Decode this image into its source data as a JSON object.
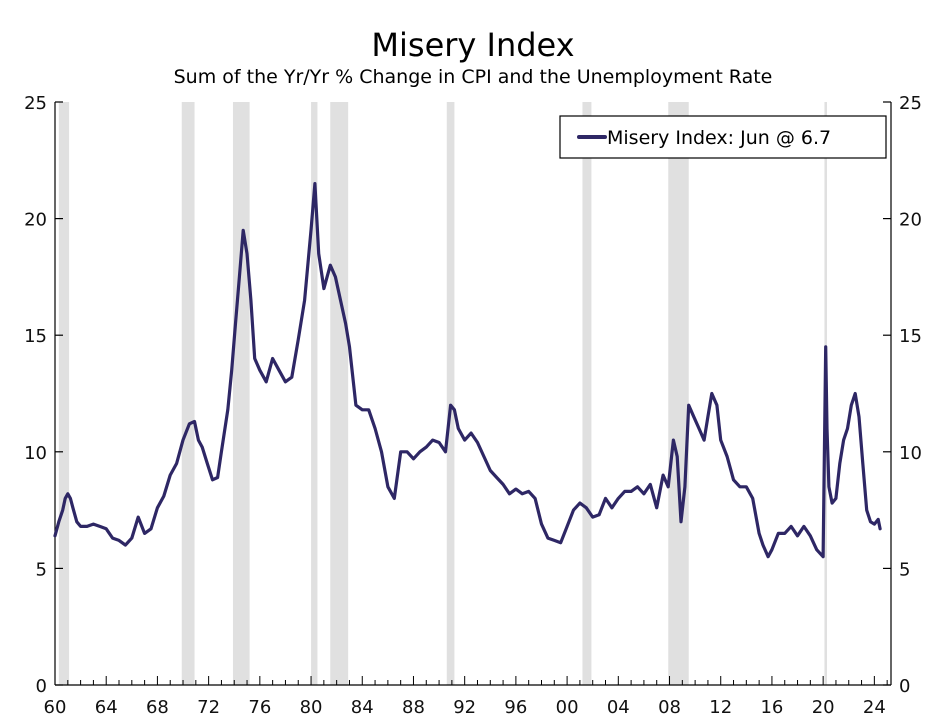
{
  "chart_data": {
    "type": "line",
    "title": "Misery Index",
    "subtitle": "Sum of the Yr/Yr % Change in CPI and the Unemployment Rate",
    "xlabel": "",
    "ylabel": "",
    "xlim": [
      1960,
      2025.3
    ],
    "ylim": [
      0,
      25
    ],
    "y_ticks": [
      0,
      5,
      10,
      15,
      20,
      25
    ],
    "y_tick_labels": [
      "0",
      "5",
      "10",
      "15",
      "20",
      "25"
    ],
    "x_ticks": [
      1960,
      1964,
      1968,
      1972,
      1976,
      1980,
      1984,
      1988,
      1992,
      1996,
      2000,
      2004,
      2008,
      2012,
      2016,
      2020,
      2024
    ],
    "x_tick_labels": [
      "60",
      "64",
      "68",
      "72",
      "76",
      "80",
      "84",
      "88",
      "92",
      "96",
      "00",
      "04",
      "08",
      "12",
      "16",
      "20",
      "24"
    ],
    "grid": false,
    "legend": {
      "position": "top-right",
      "label": "Misery Index: Jun @ 6.7"
    },
    "recessions": [
      [
        1960.3,
        1961.1
      ],
      [
        1969.9,
        1970.9
      ],
      [
        1973.9,
        1975.2
      ],
      [
        1980.0,
        1980.5
      ],
      [
        1981.5,
        1982.9
      ],
      [
        1990.6,
        1991.2
      ],
      [
        2001.2,
        2001.9
      ],
      [
        2007.9,
        2009.5
      ],
      [
        2020.1,
        2020.3
      ]
    ],
    "colors": {
      "line": "#2e2765",
      "recession": "#e0e0e0",
      "axis": "#000000"
    },
    "series": [
      {
        "name": "Misery Index",
        "x": [
          1960.0,
          1960.3,
          1960.6,
          1960.8,
          1961.0,
          1961.2,
          1961.4,
          1961.7,
          1962.0,
          1962.5,
          1963.0,
          1963.5,
          1964.0,
          1964.5,
          1965.0,
          1965.5,
          1966.0,
          1966.5,
          1967.0,
          1967.5,
          1968.0,
          1968.5,
          1969.0,
          1969.5,
          1970.0,
          1970.5,
          1970.9,
          1971.2,
          1971.5,
          1971.9,
          1972.3,
          1972.7,
          1973.0,
          1973.5,
          1973.8,
          1974.1,
          1974.4,
          1974.7,
          1975.0,
          1975.3,
          1975.6,
          1976.0,
          1976.5,
          1977.0,
          1977.5,
          1978.0,
          1978.5,
          1979.0,
          1979.5,
          1980.0,
          1980.3,
          1980.6,
          1981.0,
          1981.5,
          1981.9,
          1982.3,
          1982.7,
          1983.0,
          1983.5,
          1984.0,
          1984.5,
          1985.0,
          1985.5,
          1986.0,
          1986.5,
          1987.0,
          1987.5,
          1988.0,
          1988.5,
          1989.0,
          1989.5,
          1990.0,
          1990.5,
          1990.9,
          1991.2,
          1991.5,
          1992.0,
          1992.5,
          1993.0,
          1993.5,
          1994.0,
          1994.5,
          1995.0,
          1995.5,
          1996.0,
          1996.5,
          1997.0,
          1997.5,
          1998.0,
          1998.5,
          1999.0,
          1999.5,
          2000.0,
          2000.5,
          2001.0,
          2001.5,
          2002.0,
          2002.5,
          2003.0,
          2003.5,
          2004.0,
          2004.5,
          2005.0,
          2005.5,
          2006.0,
          2006.5,
          2007.0,
          2007.5,
          2007.9,
          2008.3,
          2008.6,
          2008.9,
          2009.2,
          2009.5,
          2009.9,
          2010.3,
          2010.7,
          2011.0,
          2011.3,
          2011.7,
          2012.0,
          2012.5,
          2013.0,
          2013.5,
          2014.0,
          2014.5,
          2015.0,
          2015.3,
          2015.7,
          2016.0,
          2016.5,
          2017.0,
          2017.5,
          2018.0,
          2018.5,
          2019.0,
          2019.5,
          2020.0,
          2020.2,
          2020.3,
          2020.45,
          2020.7,
          2021.0,
          2021.3,
          2021.6,
          2021.9,
          2022.2,
          2022.5,
          2022.8,
          2023.1,
          2023.4,
          2023.7,
          2024.0,
          2024.3,
          2024.45
        ],
        "values": [
          6.4,
          7.0,
          7.5,
          8.0,
          8.2,
          8.0,
          7.6,
          7.0,
          6.8,
          6.8,
          6.9,
          6.8,
          6.7,
          6.3,
          6.2,
          6.0,
          6.3,
          7.2,
          6.5,
          6.7,
          7.6,
          8.1,
          9.0,
          9.5,
          10.5,
          11.2,
          11.3,
          10.5,
          10.2,
          9.5,
          8.8,
          8.9,
          10.0,
          11.8,
          13.5,
          15.5,
          17.5,
          19.5,
          18.5,
          16.5,
          14.0,
          13.5,
          13.0,
          14.0,
          13.5,
          13.0,
          13.2,
          14.8,
          16.5,
          19.5,
          21.5,
          18.5,
          17.0,
          18.0,
          17.5,
          16.5,
          15.5,
          14.5,
          12.0,
          11.8,
          11.8,
          11.0,
          10.0,
          8.5,
          8.0,
          10.0,
          10.0,
          9.7,
          10.0,
          10.2,
          10.5,
          10.4,
          10.0,
          12.0,
          11.8,
          11.0,
          10.5,
          10.8,
          10.4,
          9.8,
          9.2,
          8.9,
          8.6,
          8.2,
          8.4,
          8.2,
          8.3,
          8.0,
          6.9,
          6.3,
          6.2,
          6.1,
          6.8,
          7.5,
          7.8,
          7.6,
          7.2,
          7.3,
          8.0,
          7.6,
          8.0,
          8.3,
          8.3,
          8.5,
          8.2,
          8.6,
          7.6,
          9.0,
          8.5,
          10.5,
          9.8,
          7.0,
          8.5,
          12.0,
          11.5,
          11.0,
          10.5,
          11.5,
          12.5,
          12.0,
          10.5,
          9.8,
          8.8,
          8.5,
          8.5,
          8.0,
          6.5,
          6.0,
          5.5,
          5.8,
          6.5,
          6.5,
          6.8,
          6.4,
          6.8,
          6.4,
          5.8,
          5.5,
          14.5,
          11.0,
          8.5,
          7.8,
          8.0,
          9.5,
          10.5,
          11.0,
          12.0,
          12.5,
          11.5,
          9.5,
          7.5,
          7.0,
          6.9,
          7.1,
          6.7
        ]
      }
    ]
  }
}
